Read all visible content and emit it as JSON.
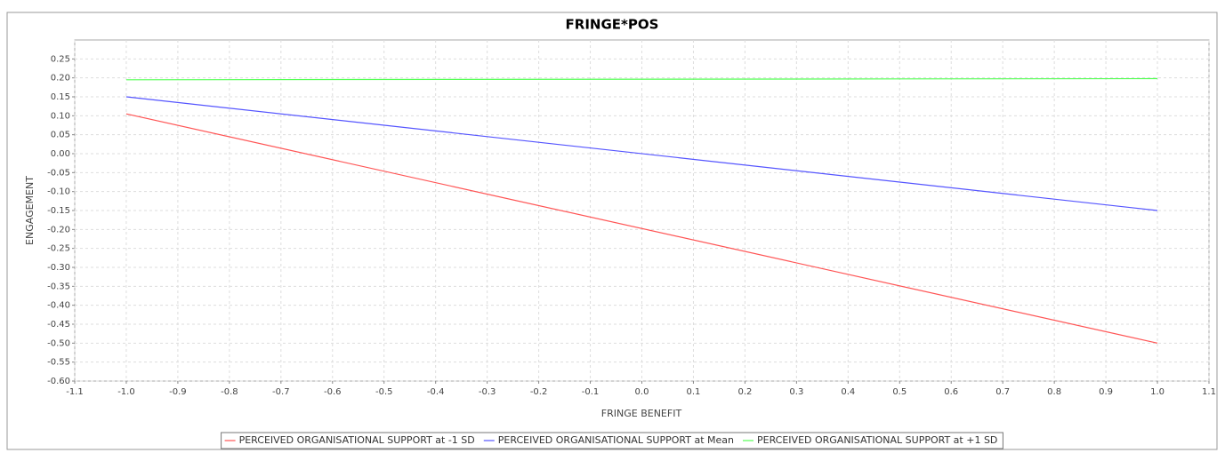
{
  "chart_data": {
    "type": "line",
    "title": "FRINGE*POS",
    "x_label": "FRINGE BENEFIT",
    "y_label": "ENGAGEMENT",
    "x": [
      -1,
      1
    ],
    "series": [
      {
        "name": "PERCEIVED ORGANISATIONAL SUPPORT at -1 SD",
        "color": "#ff5555",
        "values": [
          0.105,
          -0.5
        ]
      },
      {
        "name": "PERCEIVED ORGANISATIONAL SUPPORT at Mean",
        "color": "#5555ff",
        "values": [
          0.15,
          -0.15
        ]
      },
      {
        "name": "PERCEIVED ORGANISATIONAL SUPPORT at +1 SD",
        "color": "#55ff55",
        "values": [
          0.195,
          0.198
        ]
      }
    ],
    "xlim": [
      -1.1,
      1.1
    ],
    "xticks": [
      -1.1,
      {
        "value": -1,
        "label": "-1.0"
      },
      -0.9,
      -0.8,
      -0.7,
      -0.6,
      -0.5,
      -0.4,
      -0.3,
      -0.2,
      -0.1,
      {
        "value": 0,
        "label": "0.0"
      },
      0.1,
      0.2,
      0.3,
      0.4,
      0.5,
      0.6,
      0.7,
      0.8,
      0.9,
      {
        "value": 1,
        "label": "1.0"
      },
      1.1
    ],
    "ylim": [
      -0.6,
      0.3
    ],
    "yticks": [
      0.25,
      {
        "value": 0.2,
        "label": "0.20"
      },
      0.15,
      {
        "value": 0.1,
        "label": "0.10"
      },
      0.05,
      {
        "value": 0,
        "label": "0.00"
      },
      -0.05,
      {
        "value": -0.1,
        "label": "-0.10"
      },
      -0.15,
      {
        "value": -0.2,
        "label": "-0.20"
      },
      -0.25,
      {
        "value": -0.3,
        "label": "-0.30"
      },
      -0.35,
      {
        "value": -0.4,
        "label": "-0.40"
      },
      -0.45,
      {
        "value": -0.5,
        "label": "-0.50"
      },
      -0.55,
      {
        "value": -0.6,
        "label": "-0.60"
      }
    ],
    "grid": true
  }
}
